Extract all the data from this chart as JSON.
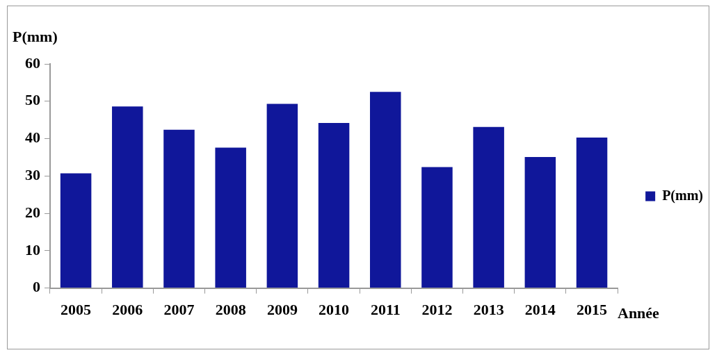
{
  "chart_data": {
    "type": "bar",
    "ylabel": "P(mm)",
    "xlabel": "Année",
    "categories": [
      "2005",
      "2006",
      "2007",
      "2008",
      "2009",
      "2010",
      "2011",
      "2012",
      "2013",
      "2014",
      "2015"
    ],
    "series": [
      {
        "name": "P(mm)",
        "color": "#10179a",
        "values": [
          30.7,
          48.6,
          42.4,
          37.6,
          49.3,
          44.2,
          52.5,
          32.4,
          43.1,
          35.1,
          40.3
        ]
      }
    ],
    "ylim": [
      0,
      60
    ],
    "yticks": [
      0,
      10,
      20,
      30,
      40,
      50,
      60
    ],
    "grid": false,
    "legend": "right"
  }
}
